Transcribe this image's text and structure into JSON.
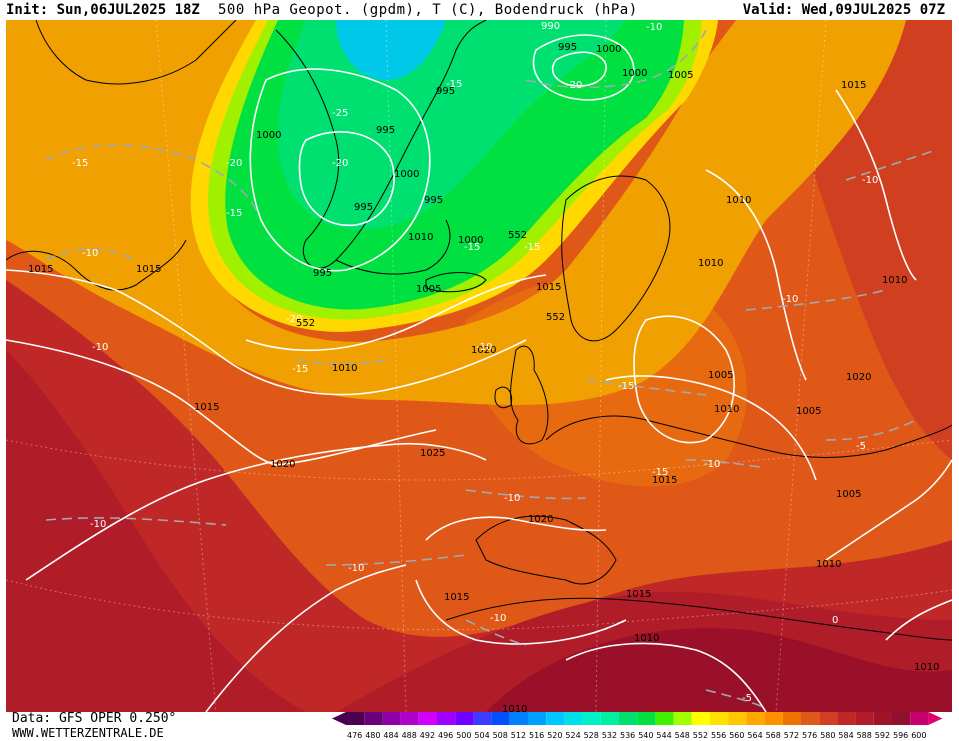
{
  "header": {
    "init": "Init: Sun,06JUL2025 18Z",
    "title": "500 hPa Geopot. (gpdm), T (C), Bodendruck (hPa)",
    "valid": "Valid: Wed,09JUL2025 07Z"
  },
  "footer": {
    "data_source": "Data: GFS OPER 0.250°",
    "website": "WWW.WETTERZENTRALE.DE"
  },
  "colorbar": {
    "values": [
      "476",
      "480",
      "484",
      "488",
      "492",
      "496",
      "500",
      "504",
      "508",
      "512",
      "516",
      "520",
      "524",
      "528",
      "532",
      "536",
      "540",
      "544",
      "548",
      "552",
      "556",
      "560",
      "564",
      "568",
      "572",
      "576",
      "580",
      "584",
      "588",
      "592",
      "596",
      "600"
    ],
    "colors": [
      "#4b0050",
      "#6a007a",
      "#8c00a6",
      "#b000cc",
      "#d400ff",
      "#a000ff",
      "#7000ff",
      "#3c3cff",
      "#0050ff",
      "#0080ff",
      "#00a0ff",
      "#00c8ff",
      "#00e0e8",
      "#00f0c8",
      "#00f0a0",
      "#00e070",
      "#00e040",
      "#40f000",
      "#a0ff00",
      "#ffff00",
      "#ffe000",
      "#ffc800",
      "#ffa800",
      "#ff9000",
      "#f07000",
      "#e05818",
      "#d04020",
      "#c02828",
      "#b01c28",
      "#a01428",
      "#901030",
      "#c8006e"
    ],
    "pointer_color": "#e0006e"
  },
  "map": {
    "pressure_labels": [
      "990",
      "1000",
      "1005",
      "995",
      "1000",
      "995",
      "1000",
      "995",
      "995",
      "995",
      "1000",
      "995",
      "1005",
      "1000",
      "1015",
      "1015",
      "1015",
      "1010",
      "1020",
      "1015",
      "1010",
      "1010",
      "1005",
      "1010",
      "1010",
      "1005",
      "1015",
      "1005",
      "1025",
      "1020",
      "1020",
      "1015",
      "1015",
      "1010",
      "1010",
      "1010",
      "1010",
      "1015",
      "1020",
      "1010"
    ],
    "temp_labels": [
      "-15",
      "-20",
      "-20",
      "-25",
      "-20",
      "-15",
      "-10",
      "-15",
      "-15",
      "-15",
      "-20",
      "-15",
      "-10",
      "-15",
      "-10",
      "-10",
      "-10",
      "-10",
      "-10",
      "-5",
      "-10",
      "-10",
      "-5",
      "0",
      "-10",
      "-10",
      "-15"
    ],
    "height_labels": [
      "552",
      "552",
      "552"
    ],
    "colors": {
      "c564": "#f0a000",
      "c576": "#e05818",
      "c580": "#d04020",
      "c584": "#c02828",
      "c588": "#b01c28",
      "c552": "#ffd800",
      "c544": "#a0f000",
      "c540": "#00e040",
      "c532": "#00e070",
      "c524": "#00c8e8",
      "c560": "#ffc000"
    }
  }
}
